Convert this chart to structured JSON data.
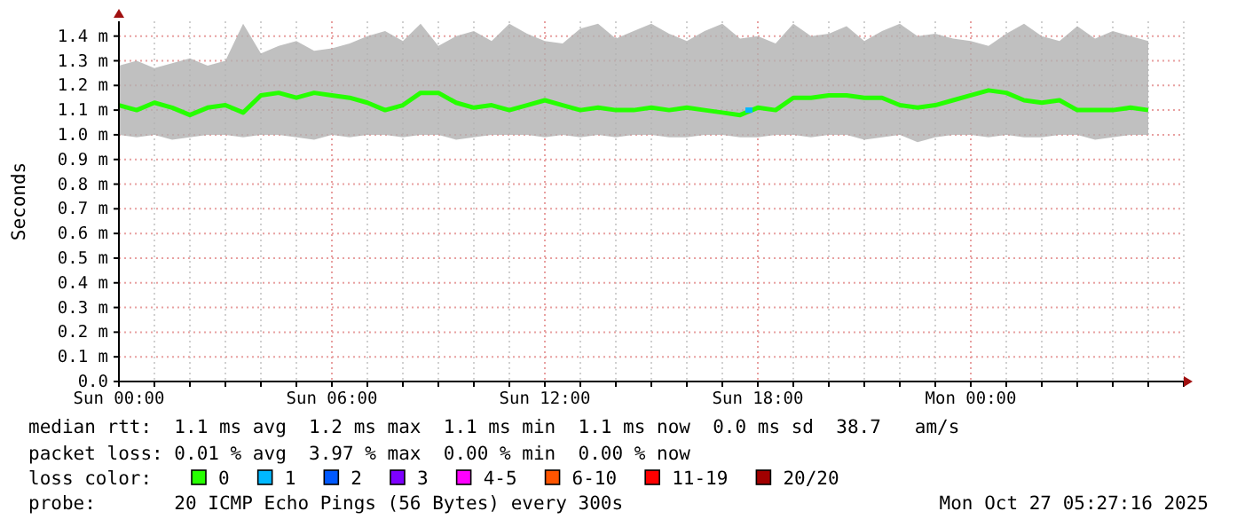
{
  "chart_data": {
    "type": "line",
    "ylabel": "Seconds",
    "legend_title": "loss color:",
    "legend": "bottom",
    "grid": true,
    "xlim": [
      "2025-10-26T00:00",
      "2025-10-27T06:00"
    ],
    "xticks": [
      {
        "value": "2025-10-26T00:00",
        "label": "Sun 00:00"
      },
      {
        "value": "2025-10-26T01:00",
        "label": null
      },
      {
        "value": "2025-10-26T02:00",
        "label": null
      },
      {
        "value": "2025-10-26T03:00",
        "label": null
      },
      {
        "value": "2025-10-26T04:00",
        "label": null
      },
      {
        "value": "2025-10-26T05:00",
        "label": null
      },
      {
        "value": "2025-10-26T06:00",
        "label": "Sun 06:00"
      },
      {
        "value": "2025-10-26T07:00",
        "label": null
      },
      {
        "value": "2025-10-26T08:00",
        "label": null
      },
      {
        "value": "2025-10-26T09:00",
        "label": null
      },
      {
        "value": "2025-10-26T10:00",
        "label": null
      },
      {
        "value": "2025-10-26T11:00",
        "label": null
      },
      {
        "value": "2025-10-26T12:00",
        "label": "Sun 12:00"
      },
      {
        "value": "2025-10-26T13:00",
        "label": null
      },
      {
        "value": "2025-10-26T14:00",
        "label": null
      },
      {
        "value": "2025-10-26T15:00",
        "label": null
      },
      {
        "value": "2025-10-26T16:00",
        "label": null
      },
      {
        "value": "2025-10-26T17:00",
        "label": null
      },
      {
        "value": "2025-10-26T18:00",
        "label": "Sun 18:00"
      },
      {
        "value": "2025-10-26T19:00",
        "label": null
      },
      {
        "value": "2025-10-26T20:00",
        "label": null
      },
      {
        "value": "2025-10-26T21:00",
        "label": null
      },
      {
        "value": "2025-10-26T22:00",
        "label": null
      },
      {
        "value": "2025-10-26T23:00",
        "label": null
      },
      {
        "value": "2025-10-27T00:00",
        "label": "Mon 00:00"
      },
      {
        "value": "2025-10-27T01:00",
        "label": null
      },
      {
        "value": "2025-10-27T02:00",
        "label": null
      },
      {
        "value": "2025-10-27T03:00",
        "label": null
      },
      {
        "value": "2025-10-27T04:00",
        "label": null
      },
      {
        "value": "2025-10-27T05:00",
        "label": null
      },
      {
        "value": "2025-10-27T06:00",
        "label": null
      }
    ],
    "ylim": [
      0,
      1.46
    ],
    "yticks": [
      {
        "value": 0,
        "label": "0.0"
      },
      {
        "value": 0.1,
        "label": "0.1 m"
      },
      {
        "value": 0.2,
        "label": "0.2 m"
      },
      {
        "value": 0.3,
        "label": "0.3 m"
      },
      {
        "value": 0.4,
        "label": "0.4 m"
      },
      {
        "value": 0.5,
        "label": "0.5 m"
      },
      {
        "value": 0.6,
        "label": "0.6 m"
      },
      {
        "value": 0.7,
        "label": "0.7 m"
      },
      {
        "value": 0.8,
        "label": "0.8 m"
      },
      {
        "value": 0.9,
        "label": "0.9 m"
      },
      {
        "value": 1.0,
        "label": "1.0 m"
      },
      {
        "value": 1.1,
        "label": "1.1 m"
      },
      {
        "value": 1.2,
        "label": "1.2 m"
      },
      {
        "value": 1.3,
        "label": "1.3 m"
      },
      {
        "value": 1.4,
        "label": "1.4 m"
      }
    ],
    "x": [
      "2025-10-26T00:00",
      "2025-10-26T00:30",
      "2025-10-26T01:00",
      "2025-10-26T01:30",
      "2025-10-26T02:00",
      "2025-10-26T02:30",
      "2025-10-26T03:00",
      "2025-10-26T03:30",
      "2025-10-26T04:00",
      "2025-10-26T04:30",
      "2025-10-26T05:00",
      "2025-10-26T05:30",
      "2025-10-26T06:00",
      "2025-10-26T06:30",
      "2025-10-26T07:00",
      "2025-10-26T07:30",
      "2025-10-26T08:00",
      "2025-10-26T08:30",
      "2025-10-26T09:00",
      "2025-10-26T09:30",
      "2025-10-26T10:00",
      "2025-10-26T10:30",
      "2025-10-26T11:00",
      "2025-10-26T11:30",
      "2025-10-26T12:00",
      "2025-10-26T12:30",
      "2025-10-26T13:00",
      "2025-10-26T13:30",
      "2025-10-26T14:00",
      "2025-10-26T14:30",
      "2025-10-26T15:00",
      "2025-10-26T15:30",
      "2025-10-26T16:00",
      "2025-10-26T16:30",
      "2025-10-26T17:00",
      "2025-10-26T17:30",
      "2025-10-26T18:00",
      "2025-10-26T18:30",
      "2025-10-26T19:00",
      "2025-10-26T19:30",
      "2025-10-26T20:00",
      "2025-10-26T20:30",
      "2025-10-26T21:00",
      "2025-10-26T21:30",
      "2025-10-26T22:00",
      "2025-10-26T22:30",
      "2025-10-26T23:00",
      "2025-10-26T23:30",
      "2025-10-27T00:00",
      "2025-10-27T00:30",
      "2025-10-27T01:00",
      "2025-10-27T01:30",
      "2025-10-27T02:00",
      "2025-10-27T02:30",
      "2025-10-27T03:00",
      "2025-10-27T03:30",
      "2025-10-27T04:00",
      "2025-10-27T04:30",
      "2025-10-27T05:00"
    ],
    "series": [
      {
        "name": "0",
        "color": "#26ff00",
        "values": [
          1.12,
          1.1,
          1.13,
          1.11,
          1.08,
          1.11,
          1.12,
          1.09,
          1.16,
          1.17,
          1.15,
          1.17,
          1.16,
          1.15,
          1.13,
          1.1,
          1.12,
          1.17,
          1.17,
          1.13,
          1.11,
          1.12,
          1.1,
          1.12,
          1.14,
          1.12,
          1.1,
          1.11,
          1.1,
          1.1,
          1.11,
          1.1,
          1.11,
          1.1,
          1.09,
          1.08,
          1.11,
          1.1,
          1.15,
          1.15,
          1.16,
          1.16,
          1.15,
          1.15,
          1.12,
          1.11,
          1.12,
          1.14,
          1.16,
          1.18,
          1.17,
          1.14,
          1.13,
          1.14,
          1.1,
          1.1,
          1.1,
          1.11,
          1.1
        ],
        "lower": [
          1.0,
          0.99,
          1.0,
          0.98,
          0.99,
          1.0,
          1.0,
          0.99,
          1.0,
          1.0,
          0.99,
          0.98,
          1.0,
          0.99,
          1.0,
          1.0,
          0.99,
          1.0,
          1.0,
          0.98,
          0.99,
          1.0,
          1.0,
          1.0,
          0.99,
          1.0,
          0.99,
          1.0,
          0.99,
          1.0,
          1.0,
          0.99,
          0.99,
          1.0,
          1.0,
          0.99,
          0.99,
          1.0,
          1.0,
          0.99,
          1.0,
          1.0,
          0.98,
          0.99,
          1.0,
          0.97,
          0.99,
          1.0,
          1.0,
          0.99,
          1.0,
          0.99,
          0.99,
          1.0,
          1.0,
          0.98,
          0.99,
          1.0,
          1.0
        ],
        "upper": [
          1.28,
          1.3,
          1.27,
          1.29,
          1.31,
          1.28,
          1.3,
          1.45,
          1.33,
          1.36,
          1.38,
          1.34,
          1.35,
          1.37,
          1.4,
          1.42,
          1.38,
          1.45,
          1.36,
          1.4,
          1.42,
          1.38,
          1.45,
          1.41,
          1.38,
          1.37,
          1.43,
          1.45,
          1.39,
          1.42,
          1.45,
          1.41,
          1.38,
          1.42,
          1.45,
          1.39,
          1.4,
          1.37,
          1.45,
          1.4,
          1.41,
          1.44,
          1.38,
          1.42,
          1.45,
          1.4,
          1.41,
          1.39,
          1.38,
          1.36,
          1.41,
          1.45,
          1.4,
          1.38,
          1.44,
          1.39,
          1.42,
          1.4,
          1.38
        ]
      },
      {
        "name": "1",
        "color": "#00b8ff",
        "type": "scatter",
        "x": [
          "2025-10-26T17:45"
        ],
        "values": [
          1.1
        ]
      },
      {
        "name": "2",
        "color": "#0059ff",
        "type": "scatter",
        "values": [
          null,
          null,
          null,
          null,
          null,
          null,
          null,
          null,
          null,
          null,
          null,
          null,
          null,
          null,
          null,
          null,
          null,
          null,
          null,
          null,
          null,
          null,
          null,
          null,
          null,
          null,
          null,
          null,
          null,
          null,
          null,
          null,
          null,
          null,
          null,
          null,
          null,
          null,
          null,
          null,
          null,
          null,
          null,
          null,
          null,
          null,
          null,
          null,
          null,
          null,
          null,
          null,
          null,
          null,
          null,
          null,
          null,
          null,
          null
        ]
      },
      {
        "name": "3",
        "color": "#7e00ff",
        "type": "scatter",
        "values": [
          null,
          null,
          null,
          null,
          null,
          null,
          null,
          null,
          null,
          null,
          null,
          null,
          null,
          null,
          null,
          null,
          null,
          null,
          null,
          null,
          null,
          null,
          null,
          null,
          null,
          null,
          null,
          null,
          null,
          null,
          null,
          null,
          null,
          null,
          null,
          null,
          null,
          null,
          null,
          null,
          null,
          null,
          null,
          null,
          null,
          null,
          null,
          null,
          null,
          null,
          null,
          null,
          null,
          null,
          null,
          null,
          null,
          null,
          null
        ]
      },
      {
        "name": "4-5",
        "color": "#ff00ff",
        "type": "scatter",
        "values": [
          null,
          null,
          null,
          null,
          null,
          null,
          null,
          null,
          null,
          null,
          null,
          null,
          null,
          null,
          null,
          null,
          null,
          null,
          null,
          null,
          null,
          null,
          null,
          null,
          null,
          null,
          null,
          null,
          null,
          null,
          null,
          null,
          null,
          null,
          null,
          null,
          null,
          null,
          null,
          null,
          null,
          null,
          null,
          null,
          null,
          null,
          null,
          null,
          null,
          null,
          null,
          null,
          null,
          null,
          null,
          null,
          null,
          null,
          null
        ]
      },
      {
        "name": "6-10",
        "color": "#ff5500",
        "type": "scatter",
        "values": [
          null,
          null,
          null,
          null,
          null,
          null,
          null,
          null,
          null,
          null,
          null,
          null,
          null,
          null,
          null,
          null,
          null,
          null,
          null,
          null,
          null,
          null,
          null,
          null,
          null,
          null,
          null,
          null,
          null,
          null,
          null,
          null,
          null,
          null,
          null,
          null,
          null,
          null,
          null,
          null,
          null,
          null,
          null,
          null,
          null,
          null,
          null,
          null,
          null,
          null,
          null,
          null,
          null,
          null,
          null,
          null,
          null,
          null,
          null
        ]
      },
      {
        "name": "11-19",
        "color": "#ff0000",
        "type": "scatter",
        "values": [
          null,
          null,
          null,
          null,
          null,
          null,
          null,
          null,
          null,
          null,
          null,
          null,
          null,
          null,
          null,
          null,
          null,
          null,
          null,
          null,
          null,
          null,
          null,
          null,
          null,
          null,
          null,
          null,
          null,
          null,
          null,
          null,
          null,
          null,
          null,
          null,
          null,
          null,
          null,
          null,
          null,
          null,
          null,
          null,
          null,
          null,
          null,
          null,
          null,
          null,
          null,
          null,
          null,
          null,
          null,
          null,
          null,
          null,
          null
        ]
      },
      {
        "name": "20/20",
        "color": "#a10000",
        "type": "scatter",
        "values": [
          null,
          null,
          null,
          null,
          null,
          null,
          null,
          null,
          null,
          null,
          null,
          null,
          null,
          null,
          null,
          null,
          null,
          null,
          null,
          null,
          null,
          null,
          null,
          null,
          null,
          null,
          null,
          null,
          null,
          null,
          null,
          null,
          null,
          null,
          null,
          null,
          null,
          null,
          null,
          null,
          null,
          null,
          null,
          null,
          null,
          null,
          null,
          null,
          null,
          null,
          null,
          null,
          null,
          null,
          null,
          null,
          null,
          null,
          null
        ]
      }
    ],
    "annotations": [
      "median rtt:  1.1 ms avg  1.2 ms max  1.1 ms min  1.1 ms now  0.0 ms sd  38.7   am/s",
      "packet loss: 0.01 % avg  3.97 % max  0.00 % min  0.00 % now",
      "probe:       20 ICMP Echo Pings (56 Bytes) every 300s",
      "Mon Oct 27 05:27:16 2025"
    ]
  }
}
